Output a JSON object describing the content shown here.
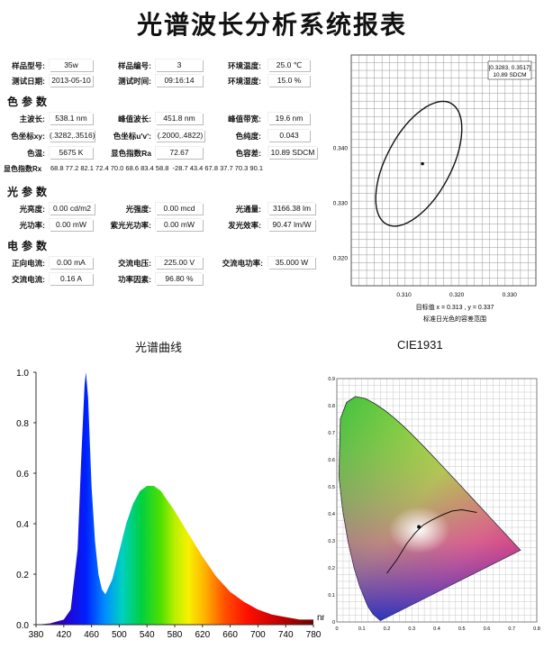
{
  "title": "光谱波长分析系统报表",
  "info": {
    "model_label": "样品型号:",
    "model": "35w",
    "number_label": "样品编号:",
    "number": "3",
    "temp_label": "环境温度:",
    "temp": "25.0 ℃",
    "date_label": "测试日期:",
    "date": "2013-05-10",
    "time_label": "测试时间:",
    "time": "09:16:14",
    "humidity_label": "环境湿度:",
    "humidity": "15.0 %"
  },
  "color": {
    "heading": "色参数",
    "dom_wl_label": "主波长:",
    "dom_wl": "538.1 nm",
    "peak_wl_label": "峰值波长:",
    "peak_wl": "451.8 nm",
    "peak_bw_label": "峰值带宽:",
    "peak_bw": "19.6 nm",
    "xy_label": "色坐标xy:",
    "xy": "(.3282,.3516)",
    "uv_label": "色坐标u'v':",
    "uv": "(.2000,.4822)",
    "purity_label": "色纯度:",
    "purity": "0.043",
    "cct_label": "色温:",
    "cct": "5675 K",
    "ra_label": "显色指数Ra",
    "ra": "72.67",
    "tol_label": "色容差:",
    "tol": "10.89 SDCM",
    "rx_label": "显色指数Rx",
    "rx": "68.8 77.2 82.1 72.4 70.0 68.6 83.4 58.8  -28.7 43.4 67.8 37.7 70.3 90.1"
  },
  "light": {
    "heading": "光参数",
    "lum_label": "光亮度:",
    "lum": "0.00 cd/m2",
    "int_label": "光强度:",
    "int": "0.00 mcd",
    "flux_label": "光通量:",
    "flux": "3166.38 lm",
    "power_label": "光功率:",
    "power": "0.00 mW",
    "uv_power_label": "紫光光功率:",
    "uv_power": "0.00 mW",
    "efficacy_label": "发光效率:",
    "efficacy": "90.47 lm/W"
  },
  "electric": {
    "heading": "电参数",
    "fwd_i_label": "正向电流:",
    "fwd_i": "0.00 mA",
    "ac_v_label": "交流电压:",
    "ac_v": "225.00 V",
    "ac_p_label": "交流电功率:",
    "ac_p": "35.000 W",
    "ac_i_label": "交流电流:",
    "ac_i": "0.16 A",
    "pf_label": "功率因素:",
    "pf": "96.80 %"
  },
  "chart_data": [
    {
      "type": "scatter",
      "title": "",
      "annotation_box": "[0.3283, 0.3517]\n10.89 SDCM",
      "center_point": {
        "x": 0.3283,
        "y": 0.3517
      },
      "ellipse_note": "tolerance ellipse around standard daylight point",
      "x_ticks": [
        "0.310",
        "0.320",
        "0.330"
      ],
      "y_ticks": [
        "0.340",
        "0.330",
        "0.320"
      ],
      "xlim": [
        0.3,
        0.335
      ],
      "ylim": [
        0.315,
        0.357
      ],
      "caption1": "目标值  x = 0.313 , y = 0.337",
      "caption2": "标准日光色的容差范围",
      "grid": true
    },
    {
      "type": "area",
      "title": "光谱曲线",
      "xlabel": "nm",
      "ylabel": "",
      "xlim": [
        380,
        780
      ],
      "ylim": [
        0,
        1.0
      ],
      "x_ticks": [
        "380",
        "420",
        "460",
        "500",
        "540",
        "580",
        "620",
        "660",
        "700",
        "740",
        "780"
      ],
      "y_ticks": [
        "1.0",
        "0.8",
        "0.6",
        "0.4",
        "0.2",
        "0.0"
      ],
      "x": [
        380,
        400,
        420,
        430,
        440,
        445,
        450,
        452,
        455,
        460,
        465,
        470,
        475,
        480,
        490,
        500,
        510,
        520,
        530,
        540,
        550,
        560,
        570,
        580,
        600,
        620,
        640,
        660,
        680,
        700,
        720,
        740,
        760,
        780
      ],
      "values": [
        0.0,
        0.005,
        0.02,
        0.06,
        0.3,
        0.65,
        0.95,
        1.0,
        0.9,
        0.55,
        0.33,
        0.2,
        0.14,
        0.12,
        0.18,
        0.29,
        0.4,
        0.48,
        0.53,
        0.55,
        0.55,
        0.53,
        0.49,
        0.45,
        0.36,
        0.27,
        0.19,
        0.13,
        0.09,
        0.06,
        0.04,
        0.03,
        0.02,
        0.02
      ],
      "grid": false
    },
    {
      "type": "scatter",
      "title": "CIE1931",
      "xlim": [
        0,
        0.8
      ],
      "ylim": [
        0,
        0.9
      ],
      "x_ticks": [
        "0",
        "0.1",
        "0.2",
        "0.3",
        "0.4",
        "0.5",
        "0.6",
        "0.7",
        "0.8"
      ],
      "y_ticks": [
        "0.9",
        "0.8",
        "0.7",
        "0.6",
        "0.5",
        "0.4",
        "0.3",
        "0.2",
        "0.1",
        "0"
      ],
      "point": {
        "x": 0.3283,
        "y": 0.3517
      },
      "grid": true
    }
  ]
}
